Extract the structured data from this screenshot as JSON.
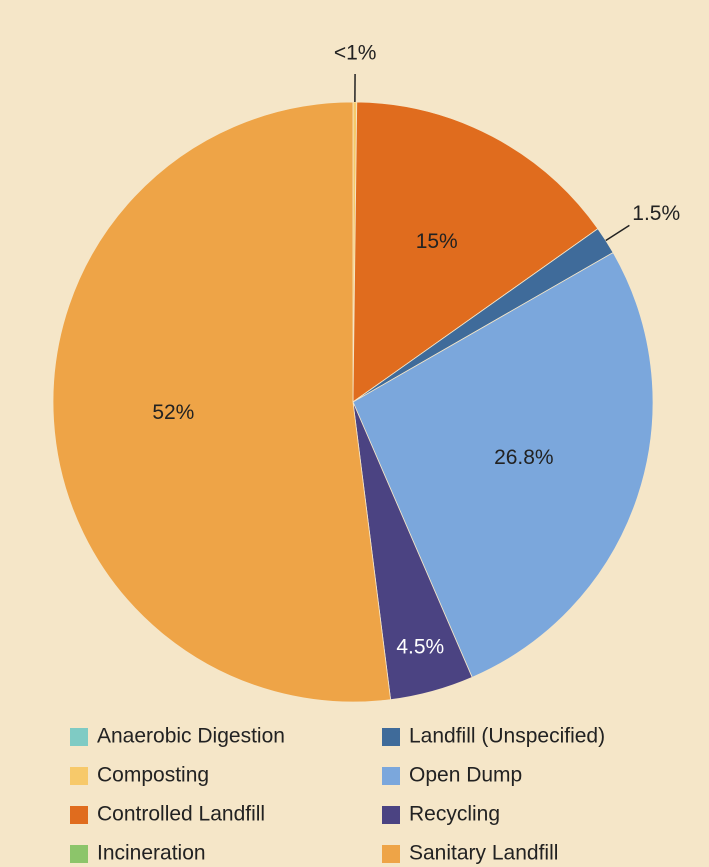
{
  "chart_data": {
    "type": "pie",
    "categories": [
      "Anaerobic Digestion",
      "Composting",
      "Controlled Landfill",
      "Incineration",
      "Landfill (Unspecified)",
      "Open Dump",
      "Recycling",
      "Sanitary Landfill"
    ],
    "values": [
      0,
      0.2,
      15,
      0,
      1.5,
      26.8,
      4.5,
      52
    ],
    "value_labels": [
      null,
      "<1%",
      "15%",
      null,
      "1.5%",
      "26.8%",
      "4.5%",
      "52%"
    ],
    "colors": [
      "#7fcbc4",
      "#f7c96a",
      "#e06c1e",
      "#8cc56a",
      "#3f6b9a",
      "#7ba7dc",
      "#4b4382",
      "#eea447"
    ],
    "legend": "bottom"
  }
}
